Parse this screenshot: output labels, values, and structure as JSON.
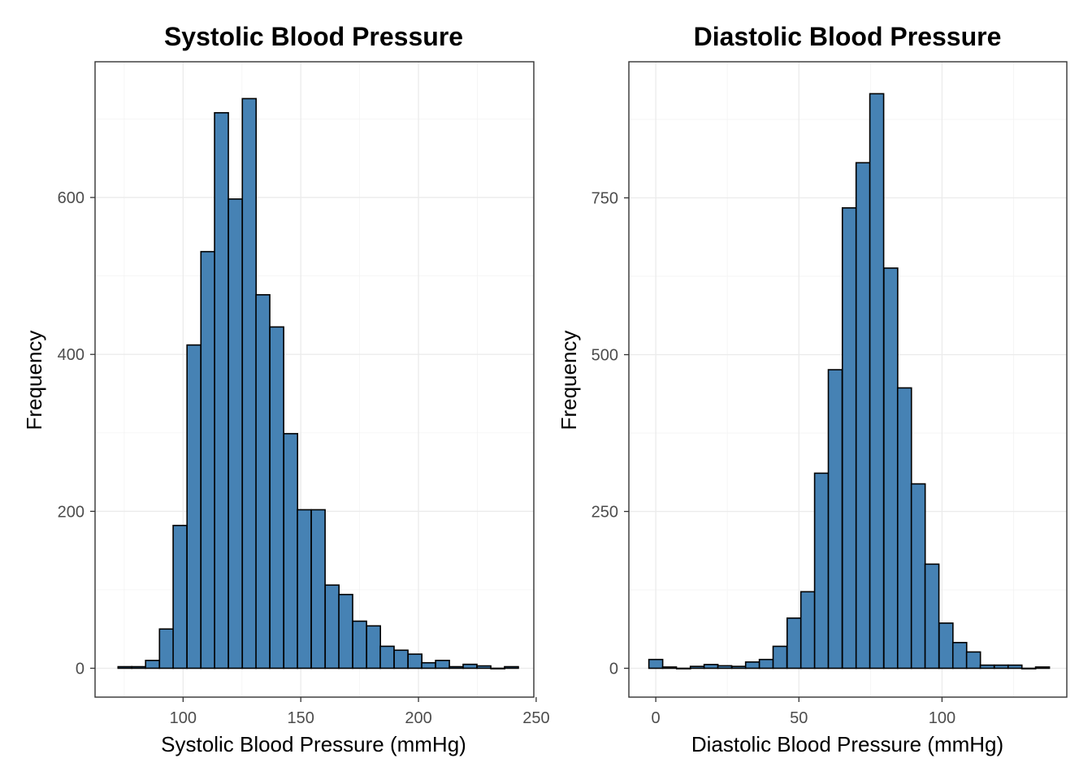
{
  "chart_data": [
    {
      "type": "bar",
      "title": "Systolic Blood Pressure",
      "xlabel": "Systolic Blood Pressure (mmHg)",
      "ylabel": "Frequency",
      "xlim": [
        62.6,
        249.0
      ],
      "ylim": [
        -36.8,
        773
      ],
      "x_ticks": [
        100,
        150,
        200,
        250
      ],
      "y_ticks": [
        0,
        200,
        400,
        600
      ],
      "grid": true,
      "bar_color": "#4682B4",
      "bin_width": 5.86,
      "bin_centers": [
        75.3,
        81.1,
        87.0,
        92.9,
        98.7,
        104.6,
        110.5,
        116.3,
        122.2,
        128.1,
        133.9,
        139.8,
        145.7,
        151.5,
        157.4,
        163.3,
        169.1,
        175.0,
        180.9,
        186.7,
        192.6,
        198.5,
        204.3,
        210.2,
        216.1,
        221.9,
        227.8,
        233.7,
        239.5
      ],
      "values": [
        2,
        2,
        10,
        50,
        182,
        412,
        531,
        708,
        598,
        726,
        476,
        435,
        299,
        202,
        202,
        106,
        94,
        60,
        54,
        28,
        23,
        18,
        7,
        10,
        2,
        5,
        3,
        0,
        2
      ]
    },
    {
      "type": "bar",
      "title": "Diastolic Blood Pressure",
      "xlabel": "Diastolic Blood Pressure (mmHg)",
      "ylabel": "Frequency",
      "xlim": [
        -9.4,
        143.6
      ],
      "ylim": [
        -46,
        967
      ],
      "x_ticks": [
        0,
        50,
        100
      ],
      "y_ticks": [
        0,
        250,
        500,
        750
      ],
      "grid": true,
      "bar_color": "#4682B4",
      "bin_width": 4.83,
      "bin_centers": [
        0.0,
        4.8,
        9.7,
        14.5,
        19.3,
        24.1,
        29.0,
        33.8,
        38.6,
        43.4,
        48.3,
        53.1,
        57.9,
        62.7,
        67.6,
        72.4,
        77.2,
        82.1,
        86.9,
        91.7,
        96.5,
        101.4,
        106.2,
        111.0,
        115.8,
        120.7,
        125.5,
        130.3,
        135.1
      ],
      "values": [
        14,
        2,
        0,
        3,
        6,
        4,
        3,
        10,
        14,
        35,
        80,
        122,
        311,
        476,
        734,
        806,
        916,
        638,
        447,
        294,
        166,
        72,
        41,
        26,
        5,
        5,
        5,
        0,
        2
      ]
    }
  ]
}
